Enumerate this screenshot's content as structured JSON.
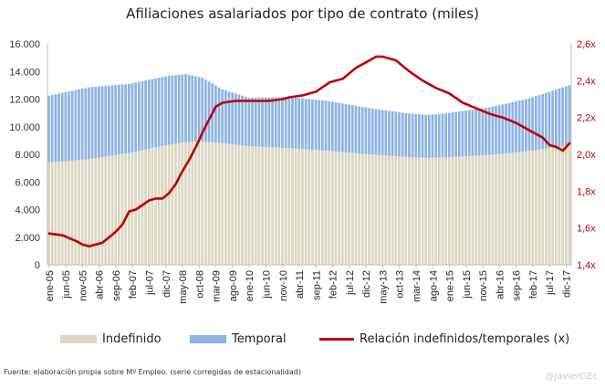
{
  "chart_data": {
    "type": "bar",
    "title": "Afiliaciones asalariados por tipo de contrato (miles)",
    "xlabel": "",
    "ylabel": "",
    "stacked": true,
    "ylim": [
      0,
      16000
    ],
    "y2lim": [
      1.4,
      2.6
    ],
    "y_ticks": [
      "0",
      "2.000",
      "4.000",
      "6.000",
      "8.000",
      "10.000",
      "12.000",
      "14.000",
      "16.000"
    ],
    "y2_ticks": [
      "1,4x",
      "1,6x",
      "1,8x",
      "2,0x",
      "2,2x",
      "2,4x",
      "2,6x"
    ],
    "x_tick_labels": [
      "ene-05",
      "jun-05",
      "nov-05",
      "abr-06",
      "sep-06",
      "feb-07",
      "jul-07",
      "dic-07",
      "may-08",
      "oct-08",
      "mar-09",
      "ago-09",
      "ene-10",
      "jun-10",
      "nov-10",
      "abr-11",
      "sep-11",
      "feb-12",
      "jul-12",
      "dic-12",
      "may-13",
      "oct-13",
      "mar-14",
      "ago-14",
      "ene-15",
      "jun-15",
      "nov-15",
      "abr-16",
      "sep-16",
      "feb-17",
      "jul-17",
      "dic-17"
    ],
    "x_tick_step_months": 5,
    "n_months": 157,
    "series": [
      {
        "name": "Indefinido",
        "kind": "bar",
        "color": "#dcd7c2",
        "keypoints": [
          [
            0,
            7400
          ],
          [
            12,
            7650
          ],
          [
            24,
            8100
          ],
          [
            36,
            8700
          ],
          [
            41,
            8880
          ],
          [
            46,
            8950
          ],
          [
            52,
            8800
          ],
          [
            60,
            8600
          ],
          [
            72,
            8450
          ],
          [
            84,
            8250
          ],
          [
            96,
            8000
          ],
          [
            108,
            7800
          ],
          [
            114,
            7750
          ],
          [
            120,
            7800
          ],
          [
            132,
            7950
          ],
          [
            144,
            8250
          ],
          [
            156,
            8650
          ]
        ]
      },
      {
        "name": "Temporal",
        "kind": "bar",
        "color": "#8eb4e3",
        "keypoints": [
          [
            0,
            4850
          ],
          [
            12,
            5200
          ],
          [
            24,
            5000
          ],
          [
            36,
            5000
          ],
          [
            41,
            4930
          ],
          [
            46,
            4600
          ],
          [
            52,
            3900
          ],
          [
            60,
            3500
          ],
          [
            72,
            3700
          ],
          [
            84,
            3600
          ],
          [
            96,
            3350
          ],
          [
            108,
            3150
          ],
          [
            114,
            3100
          ],
          [
            120,
            3200
          ],
          [
            132,
            3450
          ],
          [
            144,
            3800
          ],
          [
            156,
            4350
          ]
        ]
      },
      {
        "name": "Relación indefinidos/temporales (x)",
        "kind": "line",
        "axis": "right",
        "color": "#c00000",
        "keypoints": [
          [
            0,
            1.57
          ],
          [
            4,
            1.56
          ],
          [
            8,
            1.53
          ],
          [
            10,
            1.51
          ],
          [
            12,
            1.5
          ],
          [
            14,
            1.51
          ],
          [
            16,
            1.52
          ],
          [
            20,
            1.58
          ],
          [
            22,
            1.62
          ],
          [
            24,
            1.69
          ],
          [
            26,
            1.7
          ],
          [
            30,
            1.75
          ],
          [
            32,
            1.76
          ],
          [
            34,
            1.76
          ],
          [
            36,
            1.79
          ],
          [
            38,
            1.84
          ],
          [
            40,
            1.91
          ],
          [
            42,
            1.97
          ],
          [
            44,
            2.04
          ],
          [
            46,
            2.12
          ],
          [
            48,
            2.19
          ],
          [
            50,
            2.26
          ],
          [
            52,
            2.28
          ],
          [
            56,
            2.29
          ],
          [
            60,
            2.29
          ],
          [
            66,
            2.29
          ],
          [
            70,
            2.3
          ],
          [
            72,
            2.31
          ],
          [
            76,
            2.32
          ],
          [
            80,
            2.34
          ],
          [
            84,
            2.39
          ],
          [
            88,
            2.41
          ],
          [
            92,
            2.47
          ],
          [
            96,
            2.51
          ],
          [
            98,
            2.53
          ],
          [
            100,
            2.53
          ],
          [
            104,
            2.51
          ],
          [
            108,
            2.45
          ],
          [
            112,
            2.4
          ],
          [
            116,
            2.36
          ],
          [
            120,
            2.33
          ],
          [
            124,
            2.28
          ],
          [
            128,
            2.25
          ],
          [
            132,
            2.22
          ],
          [
            136,
            2.2
          ],
          [
            140,
            2.17
          ],
          [
            144,
            2.13
          ],
          [
            148,
            2.09
          ],
          [
            150,
            2.05
          ],
          [
            152,
            2.04
          ],
          [
            154,
            2.02
          ],
          [
            156,
            2.06
          ]
        ]
      }
    ],
    "legend_position": "bottom"
  },
  "source": "Fuente: elaboración  propia sobre  Mº Empleo.  (serie corregidas de estacionalidad)",
  "credit": "@JavierGEc"
}
